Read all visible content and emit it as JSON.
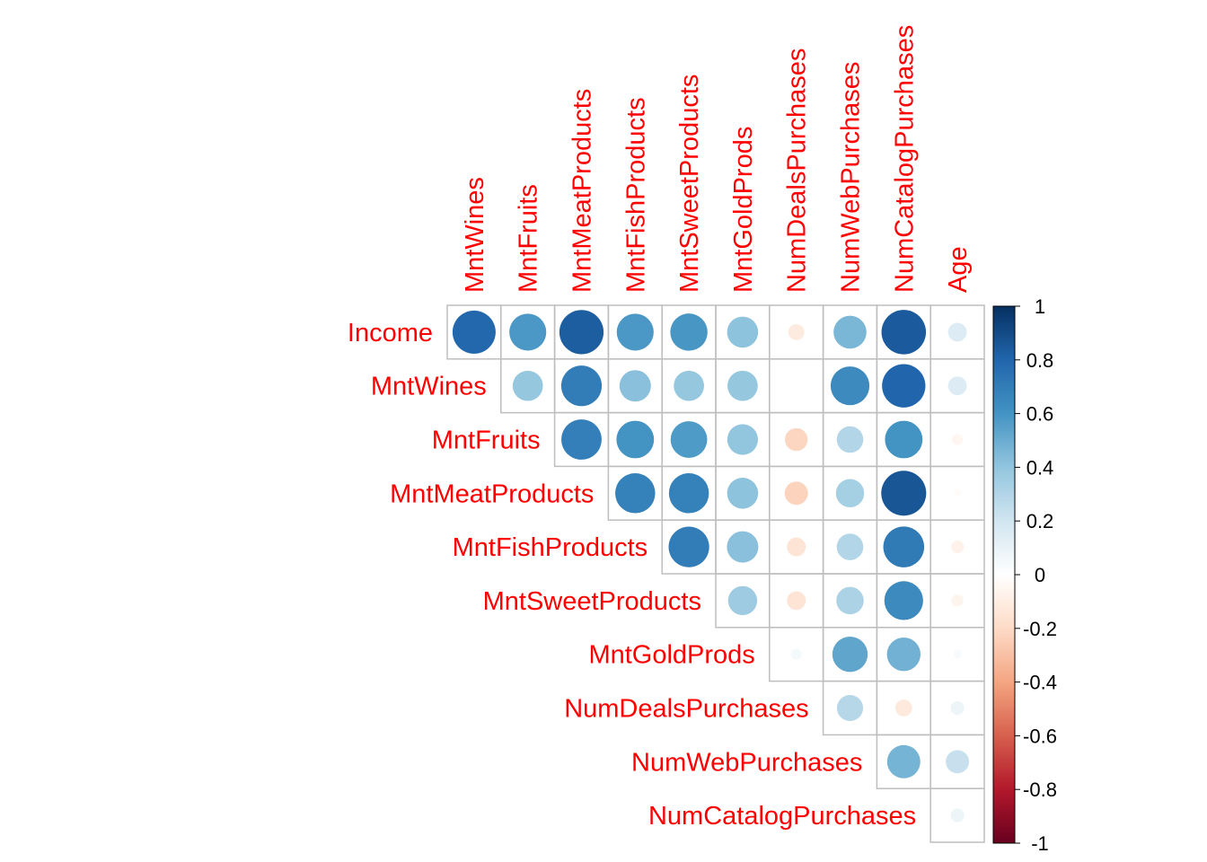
{
  "chart_data": {
    "type": "heatmap",
    "subtype": "correlation-circles-upper-triangle",
    "row_labels": [
      "Income",
      "MntWines",
      "MntFruits",
      "MntMeatProducts",
      "MntFishProducts",
      "MntSweetProducts",
      "MntGoldProds",
      "NumDealsPurchases",
      "NumWebPurchases",
      "NumCatalogPurchases"
    ],
    "col_labels": [
      "MntWines",
      "MntFruits",
      "MntMeatProducts",
      "MntFishProducts",
      "MntSweetProducts",
      "MntGoldProds",
      "NumDealsPurchases",
      "NumWebPurchases",
      "NumCatalogPurchases",
      "Age"
    ],
    "values": [
      [
        0.79,
        0.58,
        0.83,
        0.58,
        0.59,
        0.41,
        -0.11,
        0.46,
        0.84,
        0.15
      ],
      [
        null,
        0.39,
        0.7,
        0.42,
        0.39,
        0.39,
        0.01,
        0.64,
        0.8,
        0.15
      ],
      [
        null,
        null,
        0.69,
        0.6,
        0.57,
        0.4,
        -0.22,
        0.3,
        0.6,
        -0.05
      ],
      [
        null,
        null,
        null,
        0.68,
        0.68,
        0.41,
        -0.23,
        0.34,
        0.86,
        -0.02
      ],
      [
        null,
        null,
        null,
        null,
        0.7,
        0.42,
        -0.15,
        0.3,
        0.71,
        -0.07
      ],
      [
        null,
        null,
        null,
        null,
        null,
        0.36,
        -0.15,
        0.32,
        0.64,
        -0.06
      ],
      [
        null,
        null,
        null,
        null,
        null,
        null,
        0.05,
        0.53,
        0.48,
        0.03
      ],
      [
        null,
        null,
        null,
        null,
        null,
        null,
        null,
        0.29,
        -0.12,
        0.08
      ],
      [
        null,
        null,
        null,
        null,
        null,
        null,
        null,
        null,
        0.47,
        0.23
      ],
      [
        null,
        null,
        null,
        null,
        null,
        null,
        null,
        null,
        null,
        0.08
      ]
    ],
    "colorbar": {
      "min": -1,
      "max": 1,
      "tick_labels": [
        "-1",
        "-0.8",
        "-0.6",
        "-0.4",
        "-0.2",
        "0",
        "0.2",
        "0.4",
        "0.6",
        "0.8",
        "1"
      ],
      "tick_values": [
        -1,
        -0.8,
        -0.6,
        -0.4,
        -0.2,
        0,
        0.2,
        0.4,
        0.6,
        0.8,
        1
      ],
      "placement": "right"
    },
    "colors": {
      "palette": [
        "#67001F",
        "#B2182B",
        "#D6604D",
        "#F4A582",
        "#FDDBC7",
        "#FFFFFF",
        "#D1E5F0",
        "#92C5DE",
        "#4393C3",
        "#2166AC",
        "#053061"
      ],
      "label": "#FF0000",
      "grid": "#BEBEBE"
    }
  }
}
